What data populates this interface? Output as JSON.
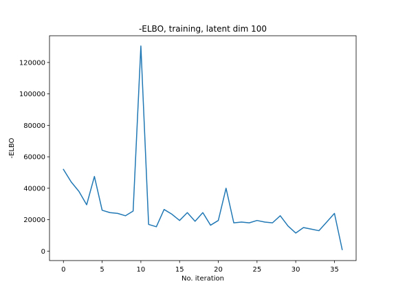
{
  "chart_data": {
    "type": "line",
    "title": "-ELBO, training, latent dim 100",
    "xlabel": "No. iteration",
    "ylabel": "-ELBO",
    "xlim": [
      -1.8,
      37.8
    ],
    "ylim": [
      -6000,
      137000
    ],
    "xticks": [
      0,
      5,
      10,
      15,
      20,
      25,
      30,
      35
    ],
    "yticks": [
      0,
      20000,
      40000,
      60000,
      80000,
      100000,
      120000
    ],
    "grid": false,
    "series": [
      {
        "color": "#1f77b4",
        "x": [
          0,
          1,
          2,
          3,
          4,
          5,
          6,
          7,
          8,
          9,
          10,
          11,
          12,
          13,
          14,
          15,
          16,
          17,
          18,
          19,
          20,
          21,
          22,
          23,
          24,
          25,
          26,
          27,
          28,
          29,
          30,
          31,
          32,
          33,
          34,
          35,
          36
        ],
        "values": [
          52000,
          44000,
          38000,
          29500,
          47500,
          26000,
          24500,
          24000,
          22500,
          25500,
          130500,
          17000,
          15500,
          26500,
          23500,
          19500,
          24500,
          19000,
          24500,
          16500,
          19500,
          40000,
          18000,
          18500,
          18000,
          19500,
          18500,
          18000,
          22500,
          16000,
          11500,
          15000,
          14000,
          13000,
          18500,
          24000,
          1000
        ]
      }
    ]
  }
}
